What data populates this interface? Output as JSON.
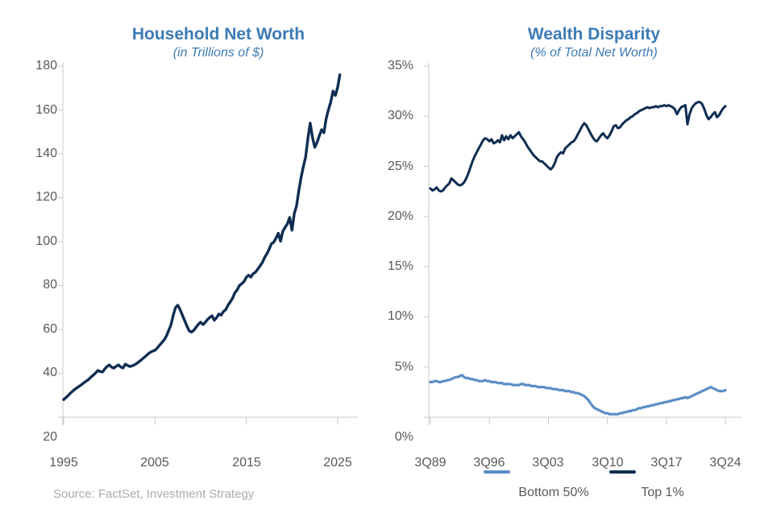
{
  "figure": {
    "source_note": "Source: FactSet, Investment Strategy"
  },
  "colors": {
    "title_blue": "#3C7BB6",
    "navy": "#0F2D52",
    "light_blue": "#5B8DC5",
    "tick_text": "#595959",
    "source_text": "#ABABAB",
    "axis_line": "#C9C9C9"
  },
  "charts": [
    {
      "title": "Household Net Worth",
      "subtitle": "(in Trillions of $)",
      "y_ticks": [
        "180",
        "160",
        "140",
        "120",
        "100",
        "80",
        "60",
        "40",
        "20"
      ],
      "x_ticks": [
        "1995",
        "2005",
        "2015",
        "2025"
      ],
      "chart_data": {
        "type": "line",
        "title": "Household Net Worth",
        "subtitle": "(in Trillions of $)",
        "x_start": "1995 Q1",
        "x_end": "2025 Q2",
        "x_period": "quarterly",
        "xlabel": "",
        "ylabel": "Trillions of $",
        "ylim": [
          20,
          180
        ],
        "y_tick_step": 20,
        "grid": false,
        "legend_position": "none",
        "series": [
          {
            "id": "household-net-worth",
            "name": "Household Net Worth",
            "color": "#0F2D52",
            "values": [
              28.0,
              28.9,
              29.9,
              31.0,
              31.9,
              32.8,
              33.5,
              34.2,
              35.0,
              35.8,
              36.5,
              37.3,
              38.3,
              39.2,
              40.2,
              41.3,
              40.8,
              40.6,
              42.0,
              43.1,
              43.8,
              42.8,
              42.4,
              43.2,
              43.8,
              42.9,
              42.4,
              44.2,
              43.6,
              43.1,
              43.4,
              43.8,
              44.5,
              45.3,
              46.1,
              47.0,
              47.9,
              48.8,
              49.6,
              50.1,
              50.5,
              51.5,
              52.8,
              54.0,
              55.2,
              57.0,
              59.5,
              62.0,
              66.5,
              70.0,
              71.0,
              69.0,
              66.5,
              64.0,
              61.5,
              59.3,
              58.8,
              59.6,
              61.0,
              62.3,
              63.3,
              62.2,
              63.2,
              64.5,
              65.5,
              66.2,
              64.2,
              65.4,
              67.0,
              66.5,
              68.2,
              69.0,
              71.0,
              72.6,
              74.2,
              76.7,
              78.0,
              80.0,
              80.8,
              81.8,
              83.7,
              84.7,
              83.8,
              85.4,
              86.0,
              87.5,
              88.9,
              90.4,
              92.7,
              94.4,
              96.5,
              99.0,
              99.7,
              101.5,
              103.8,
              100.2,
              104.7,
              106.5,
              108.1,
              111.0,
              105.2,
              112.7,
              116.2,
              123.1,
              129.2,
              134.2,
              138.5,
              147.2,
              154.0,
              147.5,
              143.0,
              145.2,
              148.2,
              151.0,
              149.6,
              156.0,
              160.2,
              163.6,
              168.6,
              166.6,
              170.2,
              176.0
            ]
          }
        ]
      }
    },
    {
      "title": "Wealth Disparity",
      "subtitle": "(% of Total Net Worth)",
      "y_ticks": [
        "35%",
        "30%",
        "25%",
        "20%",
        "15%",
        "10%",
        "5%",
        "0%"
      ],
      "x_ticks": [
        "3Q89",
        "3Q96",
        "3Q03",
        "3Q10",
        "3Q17",
        "3Q24"
      ],
      "chart_data": {
        "type": "line",
        "title": "Wealth Disparity",
        "subtitle": "(% of Total Net Worth)",
        "x_start": "1989 Q3",
        "x_end": "2024 Q3",
        "x_period": "quarterly",
        "xlabel": "",
        "ylabel": "% of Total Net Worth",
        "ylim": [
          0,
          35
        ],
        "y_tick_step": 5,
        "grid": false,
        "legend_position": "bottom",
        "series": [
          {
            "id": "bottom-50",
            "name": "Bottom 50%",
            "color": "#5B8DC5",
            "values": [
              3.5,
              3.5,
              3.6,
              3.6,
              3.5,
              3.5,
              3.6,
              3.6,
              3.7,
              3.7,
              3.8,
              3.9,
              4.0,
              4.0,
              4.1,
              4.2,
              4.0,
              3.9,
              3.9,
              3.8,
              3.8,
              3.7,
              3.7,
              3.6,
              3.6,
              3.6,
              3.7,
              3.6,
              3.6,
              3.5,
              3.5,
              3.5,
              3.4,
              3.4,
              3.4,
              3.3,
              3.3,
              3.3,
              3.3,
              3.2,
              3.2,
              3.2,
              3.2,
              3.3,
              3.3,
              3.2,
              3.2,
              3.2,
              3.1,
              3.1,
              3.1,
              3.0,
              3.0,
              3.0,
              3.0,
              2.9,
              2.9,
              2.9,
              2.8,
              2.8,
              2.8,
              2.7,
              2.7,
              2.7,
              2.6,
              2.6,
              2.6,
              2.5,
              2.5,
              2.4,
              2.4,
              2.3,
              2.2,
              2.1,
              1.9,
              1.7,
              1.4,
              1.1,
              0.9,
              0.8,
              0.7,
              0.6,
              0.5,
              0.4,
              0.4,
              0.3,
              0.3,
              0.3,
              0.3,
              0.3,
              0.4,
              0.4,
              0.5,
              0.5,
              0.6,
              0.6,
              0.7,
              0.7,
              0.8,
              0.9,
              0.9,
              1.0,
              1.0,
              1.1,
              1.1,
              1.2,
              1.2,
              1.3,
              1.3,
              1.4,
              1.4,
              1.5,
              1.5,
              1.6,
              1.6,
              1.7,
              1.7,
              1.8,
              1.8,
              1.9,
              1.9,
              2.0,
              1.9,
              2.0,
              2.1,
              2.2,
              2.3,
              2.4,
              2.5,
              2.6,
              2.7,
              2.8,
              2.9,
              3.0,
              2.9,
              2.8,
              2.7,
              2.6,
              2.6,
              2.6,
              2.7
            ]
          },
          {
            "id": "top-1",
            "name": "Top 1%",
            "color": "#0F2D52",
            "values": [
              22.8,
              22.6,
              22.7,
              22.9,
              22.6,
              22.5,
              22.6,
              22.9,
              23.1,
              23.3,
              23.8,
              23.6,
              23.4,
              23.2,
              23.1,
              23.2,
              23.4,
              23.8,
              24.3,
              24.9,
              25.5,
              26.0,
              26.4,
              26.8,
              27.2,
              27.6,
              27.8,
              27.7,
              27.5,
              27.7,
              27.3,
              27.4,
              27.6,
              27.4,
              28.1,
              27.6,
              28.0,
              27.7,
              28.1,
              27.8,
              28.0,
              28.2,
              28.4,
              28.0,
              27.7,
              27.4,
              27.0,
              26.7,
              26.4,
              26.1,
              25.9,
              25.7,
              25.5,
              25.5,
              25.3,
              25.1,
              24.9,
              24.7,
              24.9,
              25.3,
              25.9,
              26.2,
              26.4,
              26.3,
              26.8,
              27.0,
              27.2,
              27.4,
              27.5,
              27.8,
              28.2,
              28.6,
              29.0,
              29.3,
              29.1,
              28.7,
              28.3,
              27.9,
              27.6,
              27.5,
              27.8,
              28.1,
              28.3,
              28.0,
              27.8,
              28.1,
              28.5,
              29.0,
              29.1,
              28.8,
              28.9,
              29.2,
              29.4,
              29.6,
              29.7,
              29.9,
              30.0,
              30.2,
              30.3,
              30.5,
              30.6,
              30.7,
              30.8,
              30.9,
              30.8,
              30.9,
              30.9,
              31.0,
              30.9,
              31.0,
              31.0,
              31.1,
              31.0,
              31.1,
              31.0,
              30.9,
              30.7,
              30.2,
              30.6,
              30.9,
              31.0,
              31.1,
              29.2,
              30.2,
              30.8,
              31.1,
              31.3,
              31.4,
              31.4,
              31.2,
              30.7,
              30.1,
              29.7,
              29.9,
              30.2,
              30.4,
              29.9,
              30.1,
              30.5,
              30.8,
              31.0
            ]
          }
        ]
      }
    }
  ]
}
